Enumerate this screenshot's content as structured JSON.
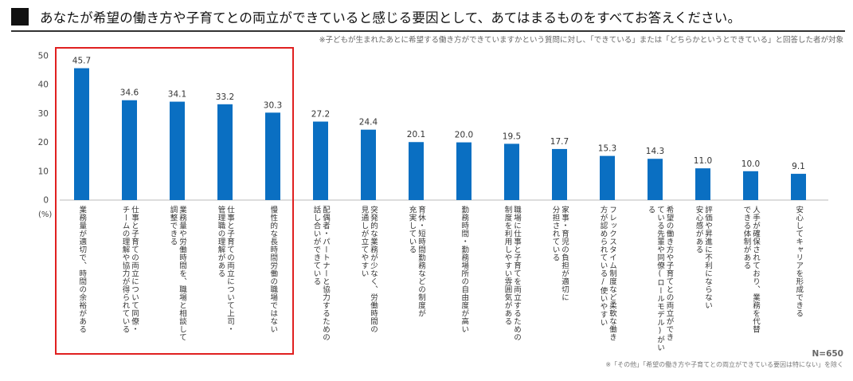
{
  "header": {
    "title": "あなたが希望の働き方や子育てとの両立ができていると感じる要因として、あてはまるものをすべてお答えください。",
    "note": "※子どもが生まれたあとに希望する働き方ができていますかという質問に対し、「できている」または「どちらかというとできている」と回答した者が対象"
  },
  "footer": {
    "n": "N=650",
    "note": "※「その他」「希望の働き方や子育てとの両立ができている要因は特にない」を除く"
  },
  "colors": {
    "bar": "#0a6fc2",
    "highlight": "#e02020"
  },
  "chart_data": {
    "type": "bar",
    "unit_label": "(%)",
    "ylim": [
      0,
      50
    ],
    "yticks": [
      "0",
      "10",
      "20",
      "30",
      "40",
      "50"
    ],
    "categories": [
      "業務量が適切で、時間の余裕がある",
      "仕事と子育ての両立について同僚・\nチームの理解や協力が得られている",
      "業務量や労働時間を、職場と相談して\n調整できる",
      "仕事と子育ての両立について上司・\n管理職の理解がある",
      "慢性的な長時間労働の職場ではない",
      "配偶者・パートナーと協力するための\n話し合いができている",
      "突発的な業務が少なく、労働時間の\n見通しが立てやすい",
      "育休・短時間勤務などの制度が\n充実している",
      "勤務時間・勤務場所の自由度が高い",
      "職場に仕事と子育てを両立するための\n制度を利用しやすい雰囲気がある",
      "家事・育児の負担が適切に\n分担されている",
      "フレックスタイム制度など柔軟な働き\n方が認められている/使いやすい",
      "希望の働き方や子育てとの両立ができ\nている先輩や同僚(ロールモデル)がいる",
      "評価や昇進に不利にならない\n安心感がある",
      "人手が確保されており、業務を代替\nできる体制がある",
      "安心してキャリアを形成できる"
    ],
    "values": [
      45.7,
      34.6,
      34.1,
      33.2,
      30.3,
      27.2,
      24.4,
      20.1,
      20.0,
      19.5,
      17.7,
      15.3,
      14.3,
      11.0,
      10.0,
      9.1
    ],
    "value_labels": [
      "45.7",
      "34.6",
      "34.1",
      "33.2",
      "30.3",
      "27.2",
      "24.4",
      "20.1",
      "20.0",
      "19.5",
      "17.7",
      "15.3",
      "14.3",
      "11.0",
      "10.0",
      "9.1"
    ],
    "grid": false,
    "highlighted_categories": [
      0,
      1,
      2,
      3,
      4
    ]
  }
}
